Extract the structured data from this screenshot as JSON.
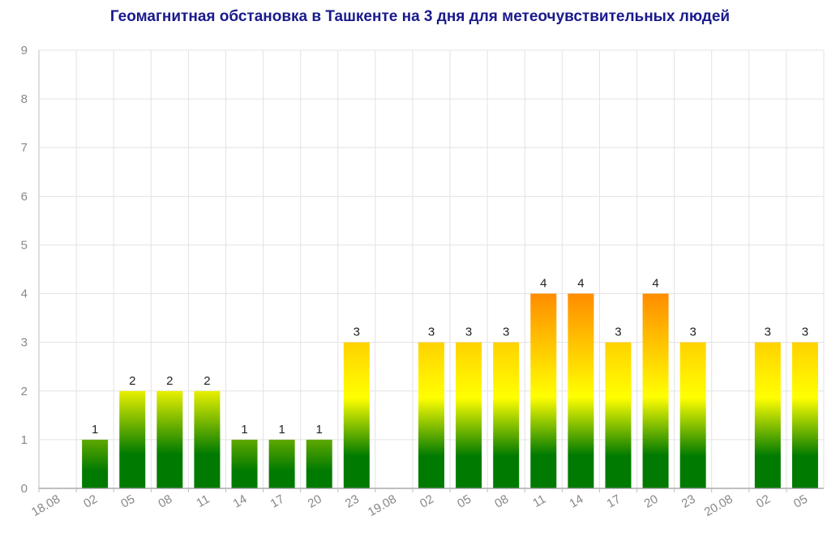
{
  "chart_data": {
    "type": "bar",
    "title": "Геомагнитная обстановка в Ташкенте на 3 дня для метеочувствительных людей",
    "categories": [
      "18.08",
      "02",
      "05",
      "08",
      "11",
      "14",
      "17",
      "20",
      "23",
      "19.08",
      "02",
      "05",
      "08",
      "11",
      "14",
      "17",
      "20",
      "23",
      "20.08",
      "02",
      "05"
    ],
    "values": [
      null,
      1,
      2,
      2,
      2,
      1,
      1,
      1,
      3,
      null,
      3,
      3,
      3,
      4,
      4,
      3,
      4,
      3,
      null,
      3,
      3
    ],
    "ylim": [
      0,
      9
    ],
    "yticks": [
      "0",
      "1",
      "2",
      "3",
      "4",
      "5",
      "6",
      "7",
      "8",
      "9"
    ],
    "xlabel": "",
    "ylabel": "",
    "grid": true,
    "colors": {
      "low": "#007a00",
      "mid": "#ffff00",
      "high": "#ff8c00"
    }
  }
}
